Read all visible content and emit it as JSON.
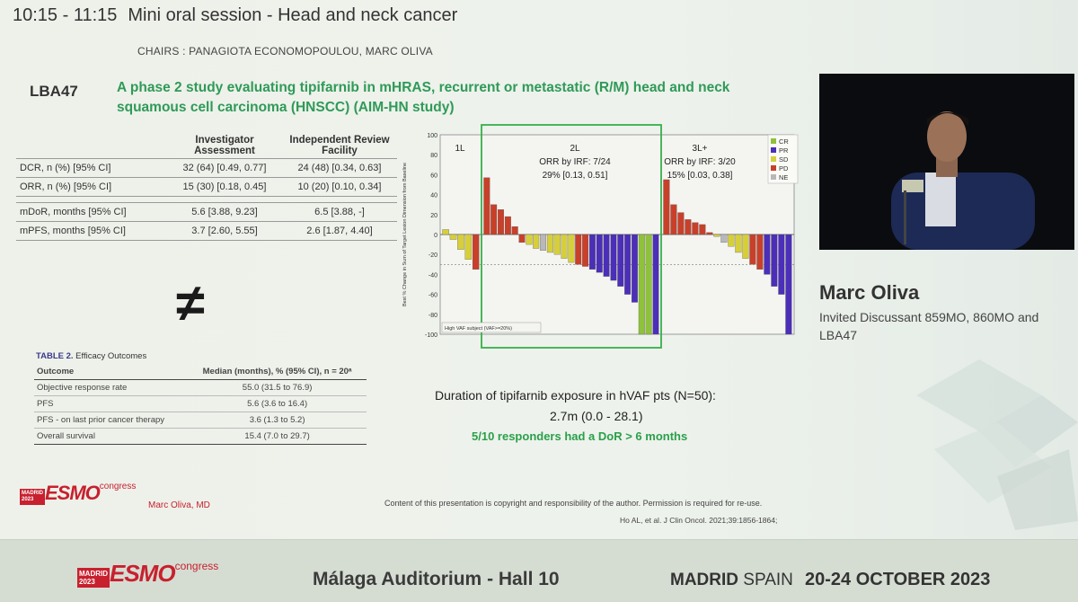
{
  "session": {
    "time": "10:15 - 11:15",
    "title": "Mini oral session - Head and neck cancer"
  },
  "chairs": "CHAIRS : PANAGIOTA ECONOMOPOULOU, MARC OLIVA",
  "abstract_id": "LBA47",
  "study_title": "A phase 2 study evaluating tipifarnib in mHRAS, recurrent or metastatic (R/M) head and neck squamous cell carcinoma (HNSCC) (AIM-HN study)",
  "efficacy_table": {
    "col1": "Investigator Assessment",
    "col2": "Independent Review Facility",
    "rows": [
      {
        "label": "DCR, n (%) [95% CI]",
        "inv": "32 (64) [0.49, 0.77]",
        "irf": "24 (48) [0.34, 0.63]"
      },
      {
        "label": "ORR, n (%) [95% CI]",
        "inv": "15 (30) [0.18, 0.45]",
        "irf": "10 (20) [0.10, 0.34]"
      },
      {
        "label": "mDoR, months [95% CI]",
        "inv": "5.6 [3.88, 9.23]",
        "irf": "6.5 [3.88, -]"
      },
      {
        "label": "mPFS, months [95% CI]",
        "inv": "3.7 [2.60, 5.55]",
        "irf": "2.6 [1.87, 4.40]"
      }
    ]
  },
  "not_equal_symbol": "≠",
  "table2": {
    "caption_bold": "TABLE 2.",
    "caption": "Efficacy Outcomes",
    "h1": "Outcome",
    "h2": "Median (months), % (95% CI), n = 20ᵃ",
    "rows": [
      {
        "outcome": "Objective response rate",
        "value": "55.0 (31.5 to 76.9)"
      },
      {
        "outcome": "PFS",
        "value": "5.6 (3.6 to 16.4)"
      },
      {
        "outcome": "PFS - on last prior cancer therapy",
        "value": "3.6 (1.3 to 5.2)"
      },
      {
        "outcome": "Overall survival",
        "value": "15.4 (7.0 to 29.7)"
      }
    ]
  },
  "esmo": {
    "city": "MADRID",
    "year": "2023",
    "word": "ESMO",
    "congress": "congress"
  },
  "author": "Marc Oliva, MD",
  "copyright": "Content of this presentation is copyright and responsibility of the author. Permission is required for re-use.",
  "reference": "Ho AL, et al. J Clin Oncol. 2021;39:1856-1864;",
  "speaker": {
    "name": "Marc Oliva",
    "role": "Invited Discussant 859MO, 860MO and LBA47"
  },
  "duration": {
    "line1": "Duration of tipifarnib exposure in hVAF pts (N=50):",
    "line2": "2.7m (0.0 - 28.1)",
    "line3": "5/10 responders had a DoR > 6 months"
  },
  "footer": {
    "hall": "Málaga Auditorium - Hall 10",
    "madrid": "MADRID",
    "spain": "SPAIN",
    "dates": "20-24 OCTOBER 2023"
  },
  "colors": {
    "CR": "#8ec23a",
    "PR": "#4b2fb8",
    "SD": "#d7cf3a",
    "PD": "#c8402a",
    "NE": "#b8b8b8",
    "highlight": "#36b04a",
    "green_text": "#2f9a58"
  },
  "chart_data": {
    "type": "bar",
    "ylabel": "Best % Change in Sum of Target Lesion Dimension from Baseline",
    "ylim": [
      -100,
      100
    ],
    "yticks": [
      100,
      80,
      60,
      40,
      20,
      0,
      -20,
      -40,
      -60,
      -80,
      -100
    ],
    "reference_line": -30,
    "legend": [
      "CR",
      "PR",
      "SD",
      "PD",
      "NE"
    ],
    "footnote": "High VAF subject (VAF>=20%)",
    "groups": [
      {
        "name": "1L",
        "text1": "",
        "text2": "",
        "bars": [
          {
            "v": 5,
            "c": "SD"
          },
          {
            "v": -5,
            "c": "SD"
          },
          {
            "v": -15,
            "c": "SD"
          },
          {
            "v": -25,
            "c": "SD"
          },
          {
            "v": -35,
            "c": "PD"
          }
        ]
      },
      {
        "name": "2L",
        "text1": "ORR by IRF: 7/24",
        "text2": "29% [0.13, 0.51]",
        "bars": [
          {
            "v": 57,
            "c": "PD"
          },
          {
            "v": 30,
            "c": "PD"
          },
          {
            "v": 25,
            "c": "PD"
          },
          {
            "v": 18,
            "c": "PD"
          },
          {
            "v": 8,
            "c": "PD"
          },
          {
            "v": -8,
            "c": "PD"
          },
          {
            "v": -10,
            "c": "SD"
          },
          {
            "v": -14,
            "c": "SD"
          },
          {
            "v": -16,
            "c": "NE"
          },
          {
            "v": -18,
            "c": "SD"
          },
          {
            "v": -20,
            "c": "SD"
          },
          {
            "v": -24,
            "c": "SD"
          },
          {
            "v": -28,
            "c": "SD"
          },
          {
            "v": -30,
            "c": "PD"
          },
          {
            "v": -32,
            "c": "PD"
          },
          {
            "v": -35,
            "c": "PR"
          },
          {
            "v": -38,
            "c": "PR"
          },
          {
            "v": -42,
            "c": "PR"
          },
          {
            "v": -46,
            "c": "PR"
          },
          {
            "v": -52,
            "c": "PR"
          },
          {
            "v": -60,
            "c": "PR"
          },
          {
            "v": -68,
            "c": "PR"
          },
          {
            "v": -100,
            "c": "CR"
          },
          {
            "v": -100,
            "c": "CR"
          },
          {
            "v": -100,
            "c": "PR"
          }
        ]
      },
      {
        "name": "3L+",
        "text1": "ORR by IRF: 3/20",
        "text2": "15% [0.03, 0.38]",
        "bars": [
          {
            "v": 55,
            "c": "PD"
          },
          {
            "v": 30,
            "c": "PD"
          },
          {
            "v": 22,
            "c": "PD"
          },
          {
            "v": 15,
            "c": "PD"
          },
          {
            "v": 12,
            "c": "PD"
          },
          {
            "v": 10,
            "c": "PD"
          },
          {
            "v": 2,
            "c": "PD"
          },
          {
            "v": -2,
            "c": "SD"
          },
          {
            "v": -8,
            "c": "NE"
          },
          {
            "v": -12,
            "c": "SD"
          },
          {
            "v": -18,
            "c": "SD"
          },
          {
            "v": -24,
            "c": "SD"
          },
          {
            "v": -30,
            "c": "PD"
          },
          {
            "v": -35,
            "c": "PD"
          },
          {
            "v": -40,
            "c": "PR"
          },
          {
            "v": -52,
            "c": "PR"
          },
          {
            "v": -60,
            "c": "PR"
          },
          {
            "v": -100,
            "c": "PR"
          }
        ]
      }
    ]
  }
}
